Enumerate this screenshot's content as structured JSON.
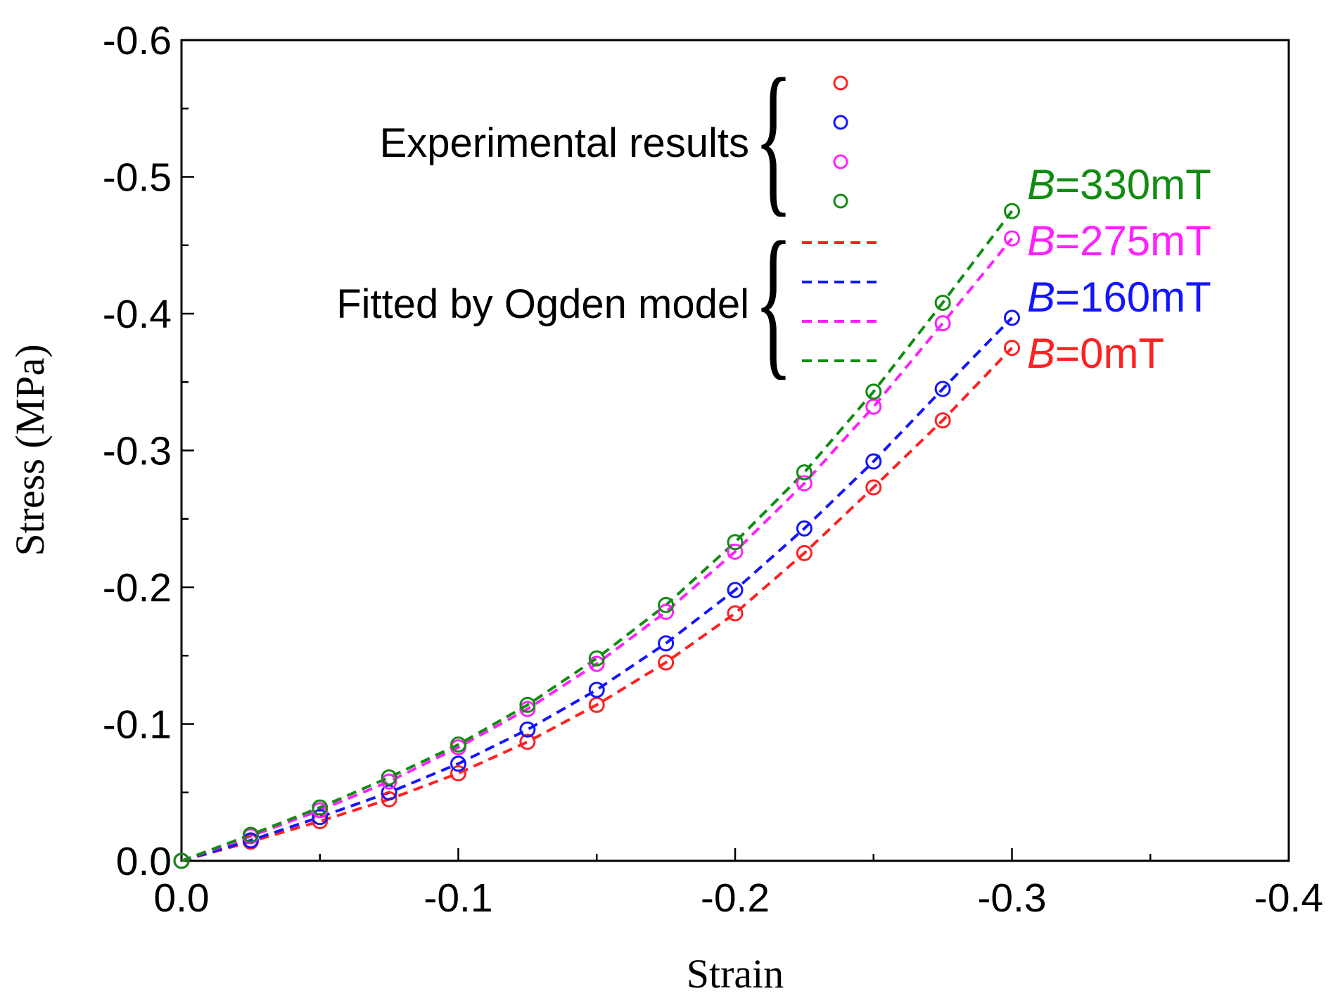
{
  "chart_data": {
    "type": "scatter",
    "xlabel": "Strain",
    "ylabel": "Stress (MPa)",
    "xlim": [
      0.0,
      -0.4
    ],
    "ylim": [
      0.0,
      -0.6
    ],
    "x_ticks": [
      "0.0",
      "-0.1",
      "-0.2",
      "-0.3",
      "-0.4"
    ],
    "y_ticks": [
      "0.0",
      "-0.1",
      "-0.2",
      "-0.3",
      "-0.4",
      "-0.5",
      "-0.6"
    ],
    "grid": false,
    "legend": {
      "markers_label": "Experimental results",
      "lines_label": "Fitted by Ogden model",
      "position": "top-left"
    },
    "series": [
      {
        "name": "B=0mT",
        "prefix": "B",
        "suffix": "=0mT",
        "color": "#ff2020",
        "x": [
          -0.0,
          -0.025,
          -0.05,
          -0.075,
          -0.1,
          -0.125,
          -0.15,
          -0.175,
          -0.2,
          -0.225,
          -0.25,
          -0.275,
          -0.3
        ],
        "y": [
          -0.0,
          -0.014,
          -0.029,
          -0.045,
          -0.064,
          -0.087,
          -0.114,
          -0.145,
          -0.181,
          -0.225,
          -0.273,
          -0.322,
          -0.375
        ]
      },
      {
        "name": "B=160mT",
        "prefix": "B",
        "suffix": "=160mT",
        "color": "#1414ff",
        "x": [
          -0.0,
          -0.025,
          -0.05,
          -0.075,
          -0.1,
          -0.125,
          -0.15,
          -0.175,
          -0.2,
          -0.225,
          -0.25,
          -0.275,
          -0.3
        ],
        "y": [
          -0.0,
          -0.015,
          -0.032,
          -0.05,
          -0.071,
          -0.096,
          -0.125,
          -0.159,
          -0.198,
          -0.243,
          -0.292,
          -0.345,
          -0.397
        ]
      },
      {
        "name": "B=275mT",
        "prefix": "B",
        "suffix": "=275mT",
        "color": "#ff20ff",
        "x": [
          -0.0,
          -0.025,
          -0.05,
          -0.075,
          -0.1,
          -0.125,
          -0.15,
          -0.175,
          -0.2,
          -0.225,
          -0.25,
          -0.275,
          -0.3
        ],
        "y": [
          -0.0,
          -0.018,
          -0.037,
          -0.058,
          -0.083,
          -0.111,
          -0.144,
          -0.182,
          -0.226,
          -0.276,
          -0.332,
          -0.393,
          -0.455
        ]
      },
      {
        "name": "B=330mT",
        "prefix": "B",
        "suffix": "=330mT",
        "color": "#108c10",
        "x": [
          -0.0,
          -0.025,
          -0.05,
          -0.075,
          -0.1,
          -0.125,
          -0.15,
          -0.175,
          -0.2,
          -0.225,
          -0.25,
          -0.275,
          -0.3
        ],
        "y": [
          -0.0,
          -0.019,
          -0.039,
          -0.061,
          -0.085,
          -0.114,
          -0.148,
          -0.187,
          -0.233,
          -0.284,
          -0.343,
          -0.408,
          -0.475
        ]
      }
    ]
  }
}
